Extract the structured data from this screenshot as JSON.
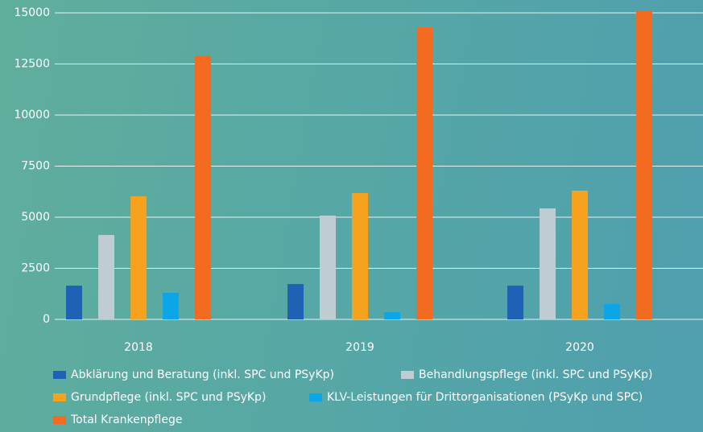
{
  "chart_data": {
    "type": "bar",
    "categories": [
      "2018",
      "2019",
      "2020"
    ],
    "series": [
      {
        "name": "Abklärung und Beratung (inkl. SPC und PSyKp)",
        "color": "#1f62b5",
        "values": [
          1650,
          1730,
          1650
        ]
      },
      {
        "name": "Behandlungspflege (inkl. SPC und PSyKp)",
        "color": "#bfcdd2",
        "values": [
          4130,
          5080,
          5430
        ]
      },
      {
        "name": "Grundpflege (inkl. SPC und PSyKp)",
        "color": "#f6a21e",
        "values": [
          6020,
          6180,
          6300
        ]
      },
      {
        "name": "KLV-Leistungen für Drittorganisationen (PSyKp und SPC)",
        "color": "#0ca6e8",
        "values": [
          1300,
          350,
          750
        ]
      },
      {
        "name": "Total Krankenpflege",
        "color": "#f26b21",
        "values": [
          12900,
          14290,
          15100
        ]
      }
    ],
    "ylim": [
      0,
      15000
    ],
    "yticks": [
      0,
      2500,
      5000,
      7500,
      10000,
      12500,
      15000
    ],
    "grid": true
  }
}
